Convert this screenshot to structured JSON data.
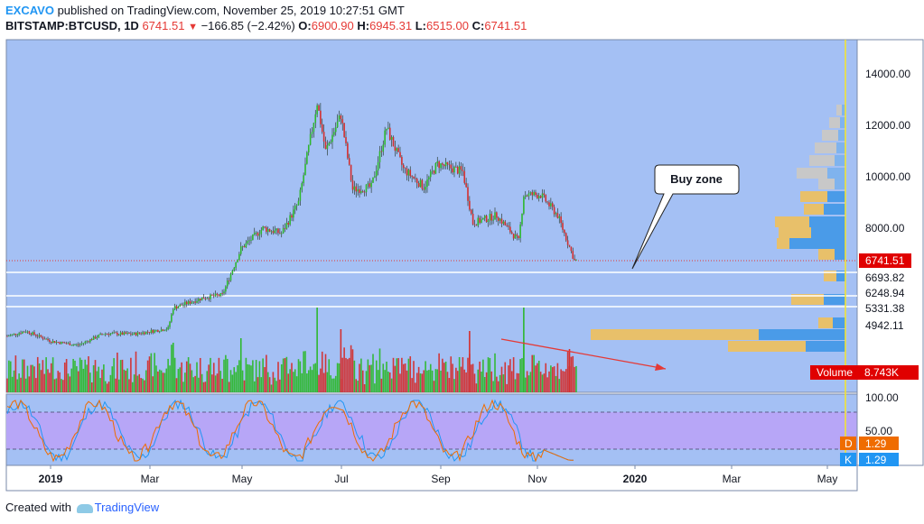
{
  "header": {
    "author": "EXCAVO",
    "published_text": "published on TradingView.com, November 25, 2019 10:27:51 GMT",
    "symbol": "BITSTAMP:BTCUSD, 1D",
    "last": "6741.51",
    "change": "−166.85 (−2.42%)",
    "o_label": "O:",
    "o_value": "6900.90",
    "h_label": "H:",
    "h_value": "6945.31",
    "l_label": "L:",
    "l_value": "6515.00",
    "c_label": "C:",
    "c_value": "6741.51"
  },
  "footer": {
    "created_with": "Created with",
    "brand": "TradingView"
  },
  "annotation": {
    "callout": "Buy zone"
  },
  "colors": {
    "up": "#2eb82e",
    "down": "#d32f2f",
    "background": "#a4c0f4",
    "stoch_band": "#b7a6f7",
    "volume_profile_a": "#e8c06a",
    "volume_profile_b": "#4a9be8"
  },
  "chart_data": [
    {
      "type": "line",
      "subtype": "candlestick-price",
      "title": "BITSTAMP:BTCUSD, 1D",
      "x_ticks": [
        "2019",
        "Mar",
        "May",
        "Jul",
        "Sep",
        "Nov",
        "2020",
        "Mar",
        "May"
      ],
      "y_ticks": [
        "14000.00",
        "12000.00",
        "10000.00",
        "8000.00"
      ],
      "ylim": [
        1800,
        15200
      ],
      "series": [
        {
          "name": "BTCUSD",
          "points": [
            [
              "2018-12-25",
              3800
            ],
            [
              "2019-01-05",
              4000
            ],
            [
              "2019-01-20",
              3600
            ],
            [
              "2019-02-05",
              3450
            ],
            [
              "2019-02-20",
              3900
            ],
            [
              "2019-03-10",
              3880
            ],
            [
              "2019-03-30",
              4100
            ],
            [
              "2019-04-02",
              4900
            ],
            [
              "2019-04-20",
              5300
            ],
            [
              "2019-05-01",
              5400
            ],
            [
              "2019-05-12",
              7200
            ],
            [
              "2019-05-25",
              8000
            ],
            [
              "2019-06-05",
              7800
            ],
            [
              "2019-06-15",
              9000
            ],
            [
              "2019-06-26",
              12900
            ],
            [
              "2019-07-01",
              11000
            ],
            [
              "2019-07-10",
              12400
            ],
            [
              "2019-07-17",
              9500
            ],
            [
              "2019-07-28",
              9600
            ],
            [
              "2019-08-06",
              11900
            ],
            [
              "2019-08-16",
              10300
            ],
            [
              "2019-08-28",
              9600
            ],
            [
              "2019-09-05",
              10500
            ],
            [
              "2019-09-20",
              10200
            ],
            [
              "2019-09-26",
              8200
            ],
            [
              "2019-10-10",
              8500
            ],
            [
              "2019-10-23",
              7500
            ],
            [
              "2019-10-26",
              9300
            ],
            [
              "2019-11-05",
              9300
            ],
            [
              "2019-11-15",
              8500
            ],
            [
              "2019-11-25",
              6741.51
            ]
          ]
        }
      ],
      "price_labels": [
        "6741.51",
        "6693.82",
        "6248.94",
        "5331.38",
        "4942.11"
      ],
      "volume_label": "Volume",
      "volume_value": "8.743K",
      "grid": false,
      "legend": "none"
    },
    {
      "type": "line",
      "subtype": "stochastic",
      "y_ticks": [
        "100.00",
        "50.00"
      ],
      "ylim": [
        0,
        100
      ],
      "bands": [
        20,
        80
      ],
      "series": [
        {
          "name": "D",
          "value": "1.29"
        },
        {
          "name": "K",
          "value": "1.29"
        }
      ]
    }
  ]
}
